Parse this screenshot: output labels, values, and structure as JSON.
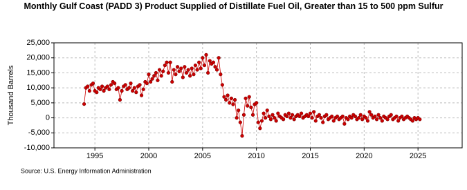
{
  "chart_data": {
    "type": "scatter-line",
    "title": "Monthly Gulf Coast (PADD 3) Product Supplied of Distillate Fuel Oil, Greater than 15 to 500 ppm Sulfur",
    "y_label": "Thousand Barrels",
    "source": "Source: U.S. Energy Information Administration",
    "xlim": [
      1991.2,
      2029.1
    ],
    "xticks": [
      1995,
      2000,
      2005,
      2010,
      2015,
      2020,
      2025
    ],
    "ylim": [
      -10000,
      25000
    ],
    "yticks": [
      {
        "value": -10000,
        "label": "-10,000"
      },
      {
        "value": -5000,
        "label": "-5,000"
      },
      0,
      {
        "value": 5000,
        "label": "5,000"
      },
      {
        "value": 10000,
        "label": "10,000"
      },
      {
        "value": 15000,
        "label": "15,000"
      },
      {
        "value": 20000,
        "label": "20,000"
      },
      {
        "value": 25000,
        "label": "25,000"
      }
    ],
    "grid": true,
    "x": [
      1994.0,
      1994.17,
      1994.33,
      1994.5,
      1994.67,
      1994.83,
      1995.0,
      1995.17,
      1995.33,
      1995.5,
      1995.67,
      1995.83,
      1996.0,
      1996.17,
      1996.33,
      1996.5,
      1996.67,
      1996.83,
      1997.0,
      1997.17,
      1997.33,
      1997.5,
      1997.67,
      1997.83,
      1998.0,
      1998.17,
      1998.33,
      1998.5,
      1998.67,
      1998.83,
      1999.0,
      1999.17,
      1999.33,
      1999.5,
      1999.67,
      1999.83,
      2000.0,
      2000.17,
      2000.33,
      2000.5,
      2000.67,
      2000.83,
      2001.0,
      2001.17,
      2001.33,
      2001.5,
      2001.67,
      2001.83,
      2002.0,
      2002.17,
      2002.33,
      2002.5,
      2002.67,
      2002.83,
      2003.0,
      2003.17,
      2003.33,
      2003.5,
      2003.67,
      2003.83,
      2004.0,
      2004.17,
      2004.33,
      2004.5,
      2004.67,
      2004.83,
      2005.0,
      2005.17,
      2005.33,
      2005.5,
      2005.67,
      2005.83,
      2006.0,
      2006.17,
      2006.33,
      2006.5,
      2006.67,
      2006.83,
      2007.0,
      2007.17,
      2007.33,
      2007.5,
      2007.67,
      2007.83,
      2008.0,
      2008.17,
      2008.33,
      2008.5,
      2008.67,
      2008.83,
      2009.0,
      2009.17,
      2009.33,
      2009.5,
      2009.67,
      2009.83,
      2010.0,
      2010.17,
      2010.33,
      2010.5,
      2010.67,
      2010.83,
      2011.0,
      2011.17,
      2011.33,
      2011.5,
      2011.67,
      2011.83,
      2012.0,
      2012.17,
      2012.33,
      2012.5,
      2012.67,
      2012.83,
      2013.0,
      2013.17,
      2013.33,
      2013.5,
      2013.67,
      2013.83,
      2014.0,
      2014.17,
      2014.33,
      2014.5,
      2014.67,
      2014.83,
      2015.0,
      2015.17,
      2015.33,
      2015.5,
      2015.67,
      2015.83,
      2016.0,
      2016.17,
      2016.33,
      2016.5,
      2016.67,
      2016.83,
      2017.0,
      2017.17,
      2017.33,
      2017.5,
      2017.67,
      2017.83,
      2018.0,
      2018.17,
      2018.33,
      2018.5,
      2018.67,
      2018.83,
      2019.0,
      2019.17,
      2019.33,
      2019.5,
      2019.67,
      2019.83,
      2020.0,
      2020.17,
      2020.33,
      2020.5,
      2020.67,
      2020.83,
      2021.0,
      2021.17,
      2021.33,
      2021.5,
      2021.67,
      2021.83,
      2022.0,
      2022.17,
      2022.33,
      2022.5,
      2022.67,
      2022.83,
      2023.0,
      2023.17,
      2023.33,
      2023.5,
      2023.67,
      2023.83,
      2024.0,
      2024.17,
      2024.33,
      2024.5,
      2024.67,
      2024.83,
      2025.0,
      2025.17
    ],
    "series": [
      {
        "color": "#cc0000",
        "values": [
          4600,
          10000,
          10500,
          9000,
          11000,
          11500,
          9000,
          8500,
          10000,
          9500,
          10500,
          9000,
          10000,
          10500,
          9500,
          11000,
          12000,
          11500,
          9500,
          10000,
          6000,
          9000,
          10500,
          11000,
          9500,
          10000,
          11500,
          9000,
          10000,
          8500,
          10500,
          11000,
          7500,
          9500,
          12000,
          11500,
          14500,
          12000,
          13000,
          14000,
          15000,
          12500,
          16000,
          14000,
          15500,
          17500,
          18500,
          15000,
          18500,
          12000,
          16000,
          14500,
          17000,
          15500,
          16500,
          13500,
          17000,
          15000,
          16000,
          14000,
          16500,
          14500,
          17500,
          16000,
          18500,
          16500,
          20000,
          17500,
          21000,
          15000,
          19000,
          18000,
          18500,
          17000,
          16000,
          20000,
          14500,
          11000,
          7000,
          6000,
          7500,
          5000,
          6500,
          4500,
          6000,
          0,
          2500,
          -1500,
          -6000,
          1000,
          6500,
          4000,
          7000,
          3500,
          1000,
          4500,
          5000,
          -1500,
          -3500,
          -1000,
          1500,
          0,
          2500,
          500,
          -500,
          1000,
          0,
          -1000,
          1500,
          500,
          0,
          -500,
          1000,
          500,
          1500,
          0,
          1000,
          -500,
          500,
          1000,
          500,
          1500,
          0,
          500,
          1000,
          500,
          1500,
          0,
          2000,
          -1000,
          500,
          1000,
          0,
          -1500,
          500,
          1000,
          -500,
          0,
          500,
          -1000,
          0,
          500,
          -500,
          0,
          500,
          -2000,
          0,
          -500,
          500,
          0,
          1000,
          500,
          -500,
          0,
          1000,
          -500,
          500,
          0,
          -1000,
          2000,
          1000,
          0,
          500,
          -500,
          1000,
          0,
          -1000,
          500,
          0,
          -500,
          500,
          1000,
          -500,
          0,
          500,
          -1000,
          0,
          500,
          -500,
          0,
          500,
          0,
          -500,
          -1000,
          0,
          -500,
          0,
          -500
        ]
      }
    ]
  }
}
